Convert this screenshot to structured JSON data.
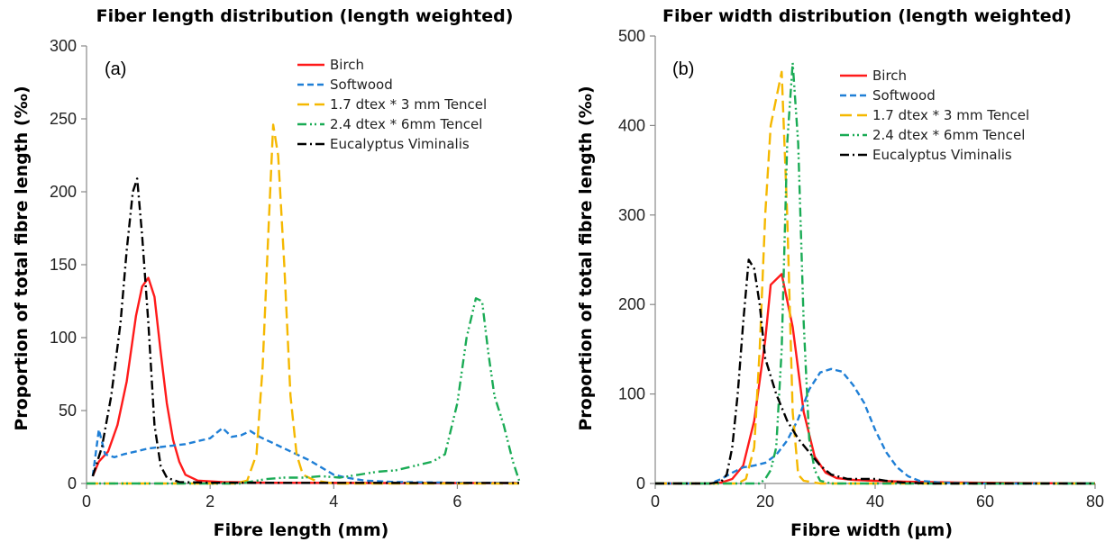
{
  "colors": {
    "Birch": "#ff1a1a",
    "Softwood": "#1f7fd6",
    "1.7 dtex * 3 mm Tencel": "#f5b800",
    "2.4 dtex * 6mm Tencel": "#1aab55",
    "Eucalyptus Viminalis": "#000000"
  },
  "chart_data": [
    {
      "type": "line",
      "panel_label": "(a)",
      "title": "Fiber length distribution (length weighted)",
      "xlabel": "Fibre length (mm)",
      "ylabel": "Proportion of total fibre length (‰)",
      "xlim": [
        0,
        7
      ],
      "ylim": [
        0,
        300
      ],
      "xticks": [
        "0",
        "2",
        "4",
        "6"
      ],
      "xtick_values": [
        0,
        2,
        4,
        6
      ],
      "yticks": [
        "0",
        "50",
        "100",
        "150",
        "200",
        "250",
        "300"
      ],
      "ytick_values": [
        0,
        50,
        100,
        150,
        200,
        250,
        300
      ],
      "legend_position": "top-right",
      "series": [
        {
          "name": "Birch",
          "dash": "solid",
          "points": [
            [
              0.1,
              5
            ],
            [
              0.2,
              15
            ],
            [
              0.35,
              22
            ],
            [
              0.5,
              40
            ],
            [
              0.65,
              70
            ],
            [
              0.8,
              115
            ],
            [
              0.9,
              135
            ],
            [
              1.0,
              141
            ],
            [
              1.1,
              128
            ],
            [
              1.2,
              90
            ],
            [
              1.3,
              55
            ],
            [
              1.4,
              30
            ],
            [
              1.5,
              15
            ],
            [
              1.6,
              6
            ],
            [
              1.8,
              2
            ],
            [
              2.2,
              1
            ],
            [
              3,
              0.5
            ],
            [
              5,
              0.3
            ],
            [
              7,
              0.3
            ]
          ]
        },
        {
          "name": "Softwood",
          "dash": "dash",
          "points": [
            [
              0.1,
              5
            ],
            [
              0.2,
              37
            ],
            [
              0.3,
              20
            ],
            [
              0.45,
              18
            ],
            [
              0.6,
              20
            ],
            [
              0.8,
              22
            ],
            [
              1.0,
              24
            ],
            [
              1.2,
              25
            ],
            [
              1.4,
              26
            ],
            [
              1.6,
              27
            ],
            [
              1.8,
              29
            ],
            [
              2.0,
              31
            ],
            [
              2.2,
              38
            ],
            [
              2.35,
              32
            ],
            [
              2.5,
              33
            ],
            [
              2.65,
              36
            ],
            [
              2.8,
              32
            ],
            [
              3.0,
              28
            ],
            [
              3.2,
              24
            ],
            [
              3.4,
              20
            ],
            [
              3.6,
              16
            ],
            [
              3.8,
              11
            ],
            [
              4.0,
              6
            ],
            [
              4.2,
              4
            ],
            [
              4.5,
              2
            ],
            [
              5.0,
              1
            ],
            [
              6.0,
              0.5
            ],
            [
              7.0,
              0.3
            ]
          ]
        },
        {
          "name": "1.7 dtex * 3 mm Tencel",
          "dash": "longdash",
          "points": [
            [
              0,
              0
            ],
            [
              2.4,
              0
            ],
            [
              2.6,
              2
            ],
            [
              2.75,
              20
            ],
            [
              2.85,
              80
            ],
            [
              2.95,
              180
            ],
            [
              3.02,
              246
            ],
            [
              3.1,
              225
            ],
            [
              3.2,
              150
            ],
            [
              3.3,
              60
            ],
            [
              3.4,
              20
            ],
            [
              3.5,
              6
            ],
            [
              3.7,
              2
            ],
            [
              4.0,
              0
            ],
            [
              7,
              0
            ]
          ]
        },
        {
          "name": "2.4 dtex * 6mm Tencel",
          "dash": "dashdotdot",
          "points": [
            [
              0,
              0
            ],
            [
              2.5,
              0
            ],
            [
              2.9,
              3
            ],
            [
              3.2,
              4
            ],
            [
              3.5,
              4
            ],
            [
              3.8,
              5
            ],
            [
              4.1,
              4
            ],
            [
              4.4,
              6
            ],
            [
              4.7,
              8
            ],
            [
              5.0,
              9
            ],
            [
              5.3,
              12
            ],
            [
              5.6,
              15
            ],
            [
              5.8,
              20
            ],
            [
              6.0,
              55
            ],
            [
              6.15,
              100
            ],
            [
              6.3,
              127
            ],
            [
              6.4,
              125
            ],
            [
              6.5,
              90
            ],
            [
              6.6,
              60
            ],
            [
              6.75,
              40
            ],
            [
              6.9,
              15
            ],
            [
              7.0,
              2
            ]
          ]
        },
        {
          "name": "Eucalyptus Viminalis",
          "dash": "dashdot",
          "points": [
            [
              0.1,
              5
            ],
            [
              0.25,
              25
            ],
            [
              0.4,
              60
            ],
            [
              0.55,
              110
            ],
            [
              0.65,
              160
            ],
            [
              0.75,
              200
            ],
            [
              0.82,
              209
            ],
            [
              0.9,
              170
            ],
            [
              1.0,
              110
            ],
            [
              1.1,
              40
            ],
            [
              1.2,
              12
            ],
            [
              1.3,
              4
            ],
            [
              1.5,
              1
            ],
            [
              2,
              0.5
            ],
            [
              7,
              0.3
            ]
          ]
        }
      ]
    },
    {
      "type": "line",
      "panel_label": "(b)",
      "title": "Fiber width distribution (length weighted)",
      "xlabel": "Fibre width (µm)",
      "ylabel": "Proportion of total fibre length (‰)",
      "xlim": [
        0,
        80
      ],
      "ylim": [
        0,
        500
      ],
      "xticks": [
        "0",
        "20",
        "40",
        "60",
        "80"
      ],
      "xtick_values": [
        0,
        20,
        40,
        60,
        80
      ],
      "yticks": [
        "0",
        "100",
        "200",
        "300",
        "400",
        "500"
      ],
      "ytick_values": [
        0,
        100,
        200,
        300,
        400,
        500
      ],
      "legend_position": "top-right",
      "series": [
        {
          "name": "Birch",
          "dash": "solid",
          "points": [
            [
              0,
              0
            ],
            [
              10,
              0
            ],
            [
              12,
              1
            ],
            [
              14,
              5
            ],
            [
              16,
              20
            ],
            [
              18,
              70
            ],
            [
              20,
              160
            ],
            [
              21,
              222
            ],
            [
              23,
              234
            ],
            [
              25,
              175
            ],
            [
              27,
              80
            ],
            [
              29,
              30
            ],
            [
              31,
              12
            ],
            [
              33,
              6
            ],
            [
              36,
              4
            ],
            [
              40,
              3
            ],
            [
              45,
              2
            ],
            [
              55,
              1
            ],
            [
              80,
              0
            ]
          ]
        },
        {
          "name": "Softwood",
          "dash": "dash",
          "points": [
            [
              0,
              0
            ],
            [
              10,
              0
            ],
            [
              12,
              5
            ],
            [
              14,
              12
            ],
            [
              16,
              18
            ],
            [
              18,
              20
            ],
            [
              20,
              23
            ],
            [
              22,
              32
            ],
            [
              24,
              48
            ],
            [
              26,
              72
            ],
            [
              28,
              105
            ],
            [
              30,
              124
            ],
            [
              32,
              128
            ],
            [
              34,
              125
            ],
            [
              36,
              110
            ],
            [
              38,
              90
            ],
            [
              40,
              60
            ],
            [
              42,
              35
            ],
            [
              44,
              18
            ],
            [
              46,
              8
            ],
            [
              48,
              3
            ],
            [
              52,
              1
            ],
            [
              60,
              0
            ],
            [
              80,
              0
            ]
          ]
        },
        {
          "name": "1.7 dtex * 3 mm Tencel",
          "dash": "longdash",
          "points": [
            [
              0,
              0
            ],
            [
              15,
              0
            ],
            [
              16.5,
              5
            ],
            [
              18,
              40
            ],
            [
              19,
              150
            ],
            [
              20,
              300
            ],
            [
              21,
              400
            ],
            [
              22,
              430
            ],
            [
              23,
              460
            ],
            [
              24,
              300
            ],
            [
              25,
              80
            ],
            [
              26,
              10
            ],
            [
              27,
              3
            ],
            [
              30,
              0
            ],
            [
              80,
              0
            ]
          ]
        },
        {
          "name": "2.4 dtex * 6mm Tencel",
          "dash": "dashdotdot",
          "points": [
            [
              0,
              0
            ],
            [
              19,
              0
            ],
            [
              20,
              5
            ],
            [
              21,
              15
            ],
            [
              22,
              40
            ],
            [
              23,
              150
            ],
            [
              24,
              380
            ],
            [
              25,
              470
            ],
            [
              26,
              380
            ],
            [
              27,
              180
            ],
            [
              28,
              50
            ],
            [
              29,
              15
            ],
            [
              30,
              3
            ],
            [
              32,
              0
            ],
            [
              80,
              0
            ]
          ]
        },
        {
          "name": "Eucalyptus Viminalis",
          "dash": "dashdot",
          "points": [
            [
              0,
              0
            ],
            [
              10,
              0
            ],
            [
              12,
              2
            ],
            [
              13,
              10
            ],
            [
              14,
              40
            ],
            [
              15,
              100
            ],
            [
              16,
              180
            ],
            [
              17,
              250
            ],
            [
              18,
              240
            ],
            [
              19,
              200
            ],
            [
              20,
              140
            ],
            [
              22,
              100
            ],
            [
              24,
              70
            ],
            [
              26,
              50
            ],
            [
              28,
              35
            ],
            [
              30,
              20
            ],
            [
              32,
              10
            ],
            [
              35,
              5
            ],
            [
              40,
              5
            ],
            [
              42,
              3
            ],
            [
              45,
              1
            ],
            [
              50,
              0
            ],
            [
              80,
              0
            ]
          ]
        }
      ]
    }
  ]
}
